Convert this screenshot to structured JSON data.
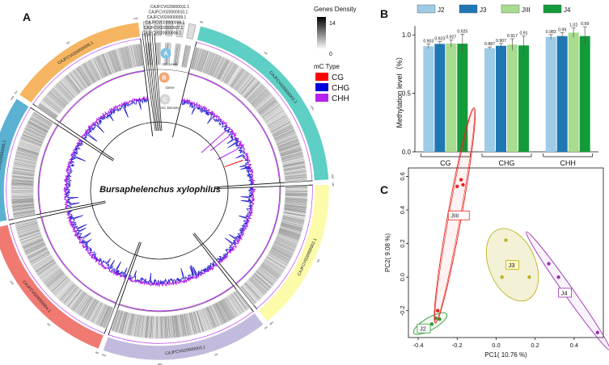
{
  "panels": {
    "a": {
      "letter": "A",
      "species": "Bursaphelenchus xylophilus",
      "top_scaffolds": [
        "CAJFCV020000011.1",
        "CAJFCV020000010.1",
        "CAJFCV020000009.1",
        "CAJFCV020000008.1",
        "CAJFCV020000007.1",
        "CAJFCV020000006.1"
      ],
      "ring_labels": [
        {
          "key": "A",
          "text": "mC Level",
          "color": "#7fc4e8"
        },
        {
          "key": "B",
          "text": "Gene",
          "color": "#f0a878"
        },
        {
          "key": "C",
          "text": "mC Density",
          "color": "#d6d6d6"
        }
      ],
      "legend": {
        "density_title": "Genes Density",
        "density_max": "14",
        "density_min": "0",
        "mc_title": "mC Type",
        "items": [
          {
            "name": "CG",
            "color": "#ff0000"
          },
          {
            "name": "CHG",
            "color": "#0000dd"
          },
          {
            "name": "CHH",
            "color": "#b422ee"
          }
        ]
      }
    },
    "b": {
      "letter": "B"
    },
    "c": {
      "letter": "C"
    }
  },
  "chart_data": [
    {
      "type": "circos",
      "title": "Bursaphelenchus xylophilus",
      "sectors": [
        {
          "name": "CAJFCV020000001.1",
          "color": "#5ecfc5",
          "size": 15.8
        },
        {
          "name": "CAJFCV020000002.1",
          "color": "#fbfbaa",
          "size": 11.5
        },
        {
          "name": "CAJFCV020000003.1",
          "color": "#c2bbdd",
          "size": 12.5
        },
        {
          "name": "CAJFCV020000004.1",
          "color": "#f07a72",
          "size": 12.3
        },
        {
          "name": "CAJFCV020000005.1",
          "color": "#5ab1d2",
          "size": 9.6
        },
        {
          "name": "CAJFCV020000006.1",
          "color": "#f5b561",
          "size": 10.6
        },
        {
          "name": "CAJFCV020000007.1",
          "color": "#dddddd",
          "size": 0.5
        },
        {
          "name": "CAJFCV020000008.1",
          "color": "#dddddd",
          "size": 0.5
        },
        {
          "name": "CAJFCV020000009.1",
          "color": "#dddddd",
          "size": 0.5
        },
        {
          "name": "CAJFCV020000010.1",
          "color": "#dddddd",
          "size": 0.5
        },
        {
          "name": "CAJFCV020000011.1",
          "color": "#dddddd",
          "size": 0.5
        }
      ],
      "tick_labels": [
        "0M",
        "5M",
        "10M",
        "15M",
        "20M"
      ]
    },
    {
      "type": "bar",
      "title": "",
      "categories": [
        "CG",
        "CHG",
        "CHH"
      ],
      "ylabel": "Methylation level（%）",
      "xlabel": "",
      "ylim": [
        0.0,
        1.05
      ],
      "yticks": [
        "0.0",
        "0.5",
        "1.0"
      ],
      "legend_position": "top",
      "series": [
        {
          "name": "J2",
          "color": "#9ecbe6",
          "values": [
            0.903,
            0.887,
            0.983
          ],
          "labels": [
            "0.903",
            "0.887",
            "0.983"
          ],
          "errors": [
            0.02,
            0.01,
            0.02
          ]
        },
        {
          "name": "J3",
          "color": "#1f78b4",
          "values": [
            0.923,
            0.907,
            0.99
          ],
          "labels": [
            "0.923",
            "0.907",
            "0.99"
          ],
          "errors": [
            0.02,
            0.02,
            0.03
          ]
        },
        {
          "name": "JIII",
          "color": "#a8dc8e",
          "values": [
            0.927,
            0.917,
            1.02
          ],
          "labels": [
            "0.927",
            "0.917",
            "1.02"
          ],
          "errors": [
            0.03,
            0.05,
            0.04
          ]
        },
        {
          "name": "J4",
          "color": "#139b3a",
          "values": [
            0.925,
            0.91,
            0.99
          ],
          "labels": [
            "0.925",
            "0.91",
            "0.99"
          ],
          "errors": [
            0.08,
            0.08,
            0.08
          ]
        }
      ]
    },
    {
      "type": "scatter",
      "title": "",
      "xlabel": "PC1( 10.76 %)",
      "ylabel": "PC2( 9.08 %)",
      "xlim": [
        -0.45,
        0.55
      ],
      "ylim": [
        -0.36,
        0.65
      ],
      "xticks": [
        -0.4,
        -0.2,
        0.0,
        0.2,
        0.4
      ],
      "yticks": [
        -0.2,
        0.0,
        0.2,
        0.4,
        0.6
      ],
      "xtick_labels": [
        "-0.4",
        "-0.2",
        "0.0",
        "0.2",
        "0.4"
      ],
      "ytick_labels": [
        "-0.2",
        "0.0",
        "0.2",
        "0.4",
        "0.6"
      ],
      "series": [
        {
          "name": "J2",
          "color": "#2e9e3a",
          "label_fill": "#ffffff",
          "points": [
            [
              -0.39,
              -0.3
            ],
            [
              -0.37,
              -0.31
            ],
            [
              -0.33,
              -0.28
            ],
            [
              -0.31,
              -0.245
            ],
            [
              -0.29,
              -0.25
            ]
          ]
        },
        {
          "name": "JIII",
          "color": "#e8251f",
          "label_fill": "#ffffff",
          "points": [
            [
              -0.3,
              -0.2
            ],
            [
              -0.2,
              0.54
            ],
            [
              -0.18,
              0.58
            ],
            [
              -0.17,
              0.55
            ]
          ]
        },
        {
          "name": "J3",
          "color": "#bcb21e",
          "label_fill": "#fdf8c4",
          "points": [
            [
              0.05,
              0.22
            ],
            [
              0.03,
              0.0
            ],
            [
              0.17,
              0.0
            ]
          ]
        },
        {
          "name": "J4",
          "color": "#9b2fb3",
          "label_fill": "#ffffff",
          "points": [
            [
              0.27,
              0.08
            ],
            [
              0.32,
              0.0
            ],
            [
              0.52,
              -0.33
            ]
          ]
        }
      ]
    }
  ]
}
